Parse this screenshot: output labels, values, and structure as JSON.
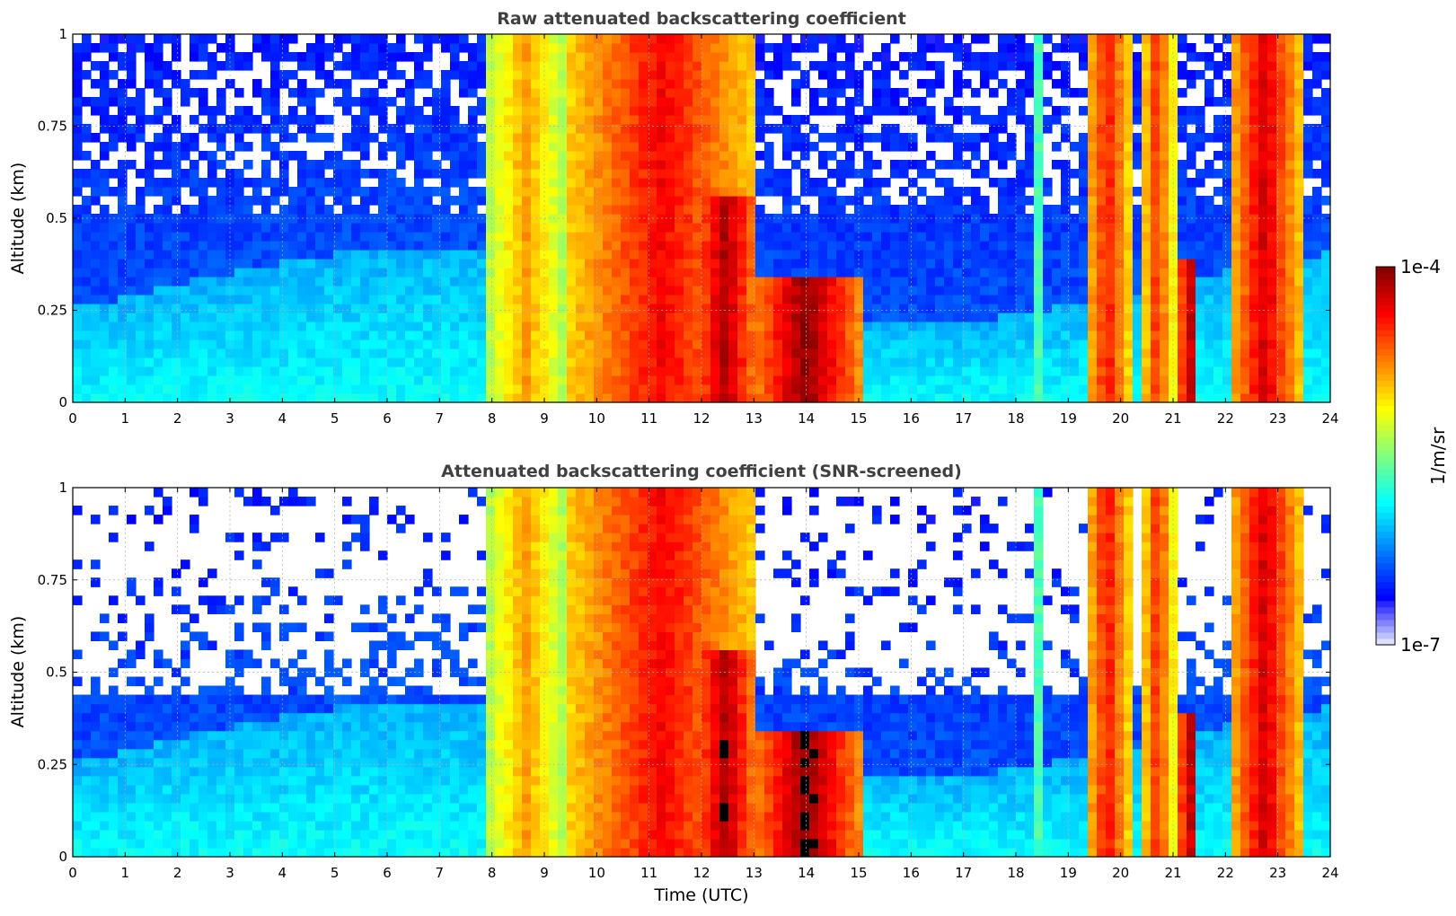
{
  "chart_data": [
    {
      "type": "heatmap",
      "title": "Raw attenuated backscattering coefficient",
      "ylabel": "Altitude (km)",
      "xlabel": "",
      "xlim": [
        0,
        24
      ],
      "ylim": [
        0,
        1
      ],
      "xticks": [
        0,
        1,
        2,
        3,
        4,
        5,
        6,
        7,
        8,
        9,
        10,
        11,
        12,
        13,
        14,
        15,
        16,
        17,
        18,
        19,
        20,
        21,
        22,
        23,
        24
      ],
      "yticks": [
        0,
        0.25,
        0.5,
        0.75,
        1
      ],
      "ytick_labels": [
        "0",
        "0.25",
        "0.5",
        "0.75",
        "1"
      ],
      "grid": true,
      "screened": false
    },
    {
      "type": "heatmap",
      "title": "Attenuated backscattering coefficient (SNR-screened)",
      "ylabel": "Altitude (km)",
      "xlabel": "Time (UTC)",
      "xlim": [
        0,
        24
      ],
      "ylim": [
        0,
        1
      ],
      "xticks": [
        0,
        1,
        2,
        3,
        4,
        5,
        6,
        7,
        8,
        9,
        10,
        11,
        12,
        13,
        14,
        15,
        16,
        17,
        18,
        19,
        20,
        21,
        22,
        23,
        24
      ],
      "yticks": [
        0,
        0.25,
        0.5,
        0.75,
        1
      ],
      "ytick_labels": [
        "0",
        "0.25",
        "0.5",
        "0.75",
        "1"
      ],
      "grid": true,
      "screened": true
    }
  ],
  "colorbar": {
    "label": "1/m/sr",
    "max_label": "1e-4",
    "min_label": "1e-7",
    "colormap": "jet",
    "low_color": "#eef0ff",
    "high_color": "#800000"
  },
  "cloud_features": [
    {
      "start": 7.9,
      "end": 9.4,
      "top": 1.0,
      "level": 0.72
    },
    {
      "start": 9.4,
      "end": 13.1,
      "top": 1.0,
      "level": 0.88
    },
    {
      "start": 11.8,
      "end": 13.1,
      "top": 0.55,
      "level": 0.96
    },
    {
      "start": 13.0,
      "end": 15.0,
      "top": 0.35,
      "level": 0.99
    },
    {
      "start": 18.3,
      "end": 18.55,
      "top": 1.0,
      "level": 0.45
    },
    {
      "start": 19.3,
      "end": 20.2,
      "top": 1.0,
      "level": 0.86
    },
    {
      "start": 20.4,
      "end": 21.0,
      "top": 1.0,
      "level": 0.84
    },
    {
      "start": 21.1,
      "end": 21.5,
      "top": 0.4,
      "level": 0.98
    },
    {
      "start": 22.1,
      "end": 23.4,
      "top": 1.0,
      "level": 0.92
    }
  ]
}
